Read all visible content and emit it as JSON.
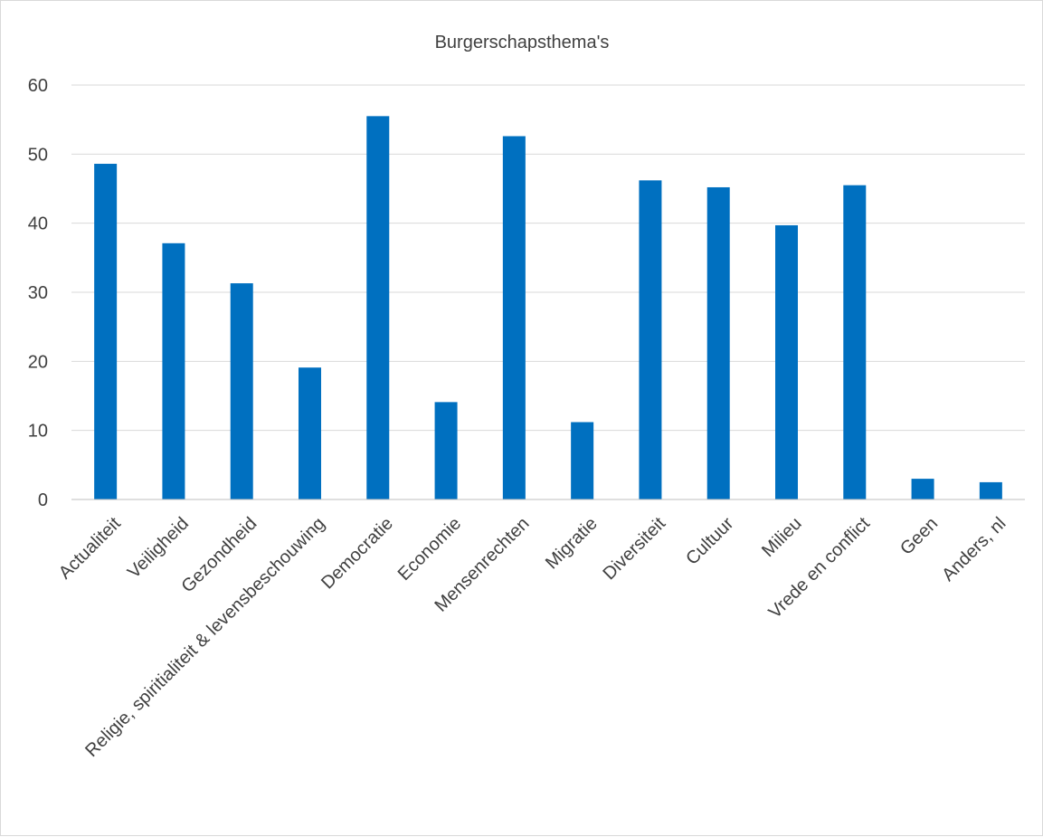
{
  "chart_data": {
    "type": "bar",
    "title": "Burgerschapsthema's",
    "xlabel": "",
    "ylabel": "",
    "categories": [
      "Actualiteit",
      "Veiligheid",
      "Gezondheid",
      "Religie, spiritialiteit & levensbeschouwing",
      "Democratie",
      "Economie",
      "Mensenrechten",
      "Migratie",
      "Diversiteit",
      "Cultuur",
      "Milieu",
      "Vrede en conflict",
      "Geen",
      "Anders, nl"
    ],
    "values": [
      48.6,
      37.1,
      31.3,
      19.1,
      55.5,
      14.1,
      52.6,
      11.2,
      46.2,
      45.2,
      39.7,
      45.5,
      3.0,
      2.5
    ],
    "ylim": [
      0,
      60
    ],
    "yticks": [
      0,
      10,
      20,
      30,
      40,
      50,
      60
    ],
    "grid": true,
    "legend": "none",
    "colors": {
      "bar": "#0070c0"
    }
  }
}
